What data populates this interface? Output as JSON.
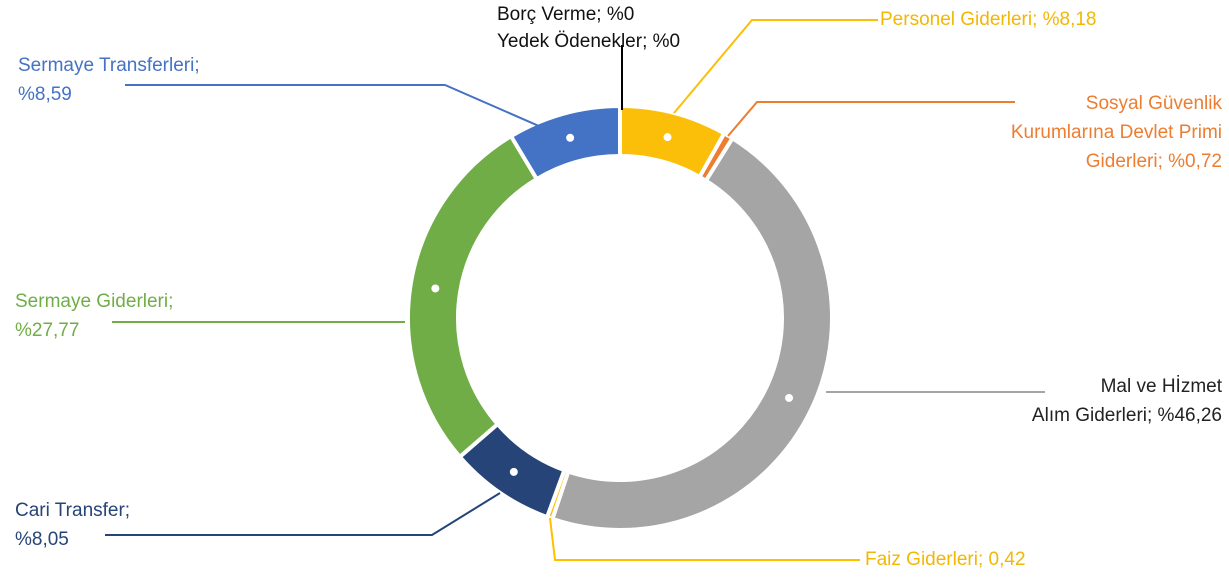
{
  "chart_data": {
    "type": "donut",
    "values": [
      8.18,
      0.72,
      46.26,
      0.42,
      8.05,
      27.77,
      8.59,
      0,
      0
    ],
    "value_labels": [
      [
        "Personel Giderleri; %8,18"
      ],
      [
        "Sosyal Güvenlik",
        "Kurumlarına Devlet Primi",
        "Giderleri; %0,72"
      ],
      [
        "Mal ve Hİzmet",
        "Alım Giderleri; %46,26"
      ],
      [
        "Faiz Giderleri; 0,42"
      ],
      [
        "Cari Transfer;",
        "%8,05"
      ],
      [
        "Sermaye Giderleri;",
        "%27,77"
      ],
      [
        "Sermaye Transferleri;",
        "%8,59"
      ],
      [
        "Borç Verme; %0"
      ],
      [
        "Yedek Ödenekler; %0"
      ]
    ],
    "colors": [
      "#fbbf09",
      "#ed7d31",
      "#a5a5a5",
      "#ffc000",
      "#264478",
      "#70ad47",
      "#4472c4",
      "#000000",
      "#000000"
    ],
    "label_colors": [
      "#f2b705",
      "#ed7d31",
      "#222222",
      "#f2b705",
      "#264478",
      "#70ad47",
      "#4472c4",
      "#111111",
      "#111111"
    ]
  }
}
